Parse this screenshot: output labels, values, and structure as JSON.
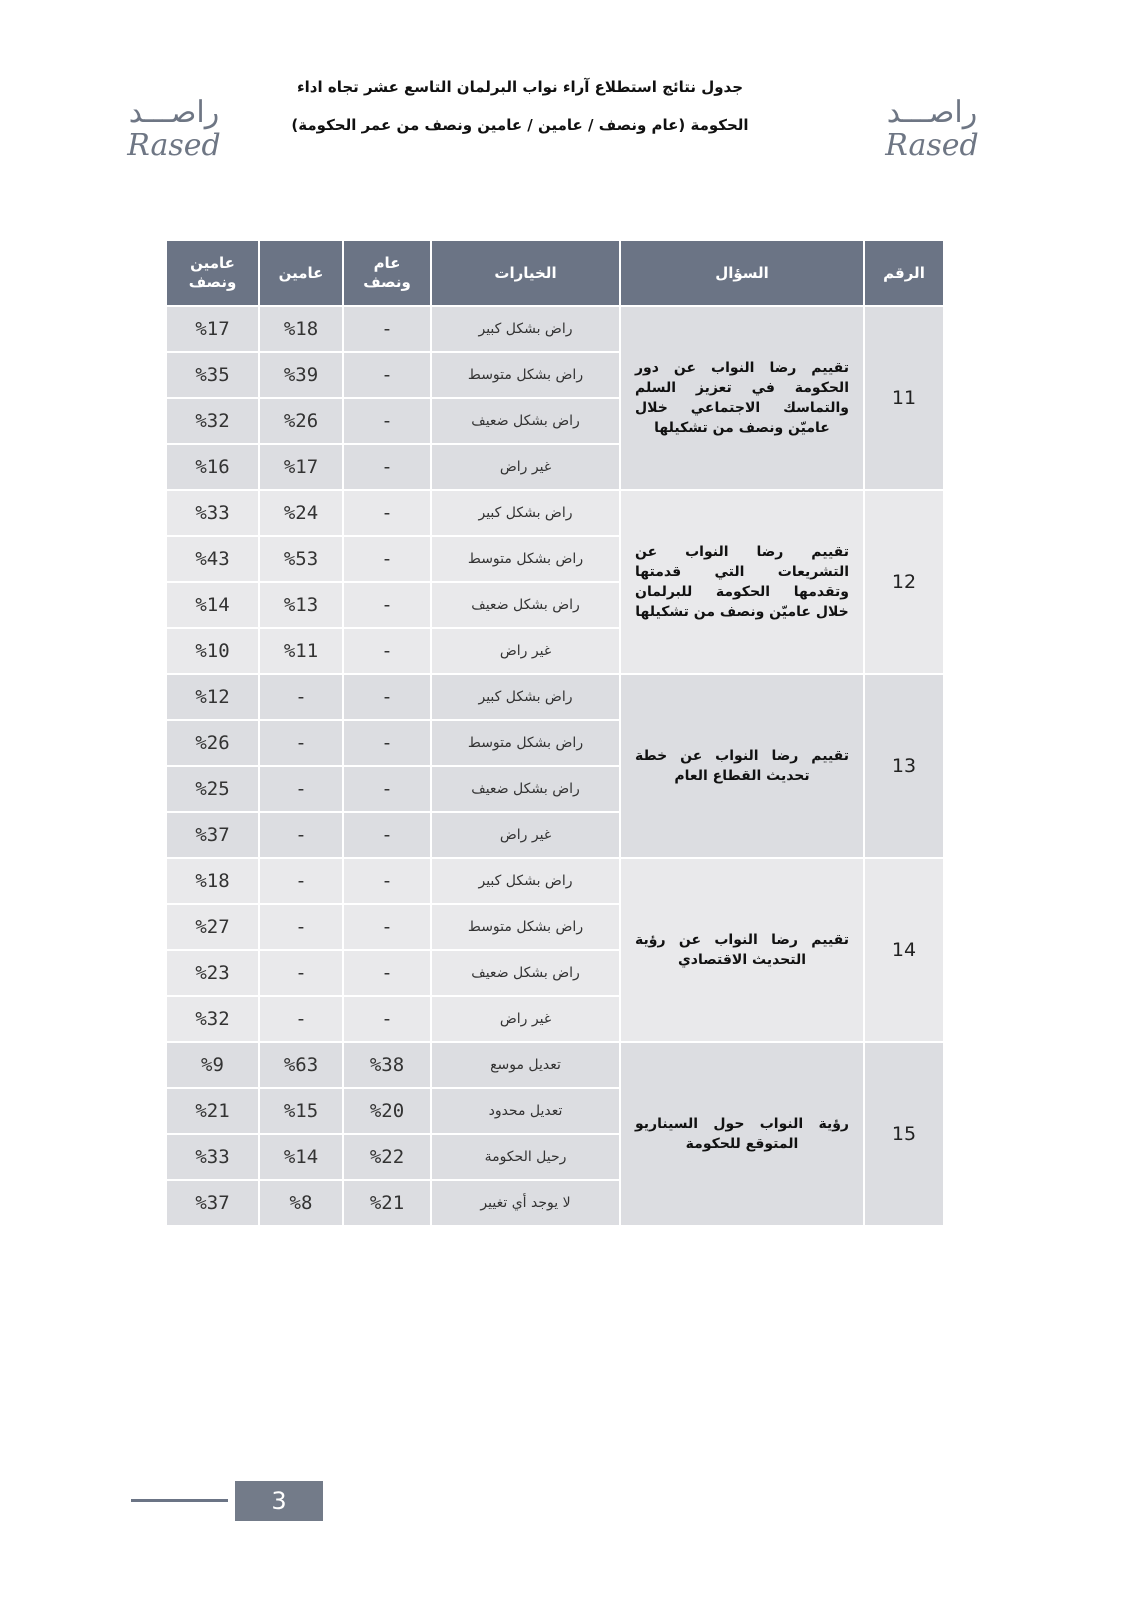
{
  "logo": {
    "arabic": "راصـــد",
    "latin": "Rased"
  },
  "title": {
    "line1": "جدول نتائج استطلاع آراء نواب البرلمان التاسع عشر تجاه اداء",
    "line2": "الحكومة (عام ونصف / عامين / عامين ونصف من عمر الحكومة)"
  },
  "table": {
    "headers": {
      "number": "الرقم",
      "question": "السؤال",
      "options": "الخيارات",
      "year_half": "عام ونصف",
      "two_years": "عامين",
      "two_half": "عامين ونصف"
    },
    "groups": [
      {
        "number": "11",
        "question": "تقييم رضا النواب عن دور الحكومة في تعزيز السلم والتماسك الاجتماعي خلال عاميّن ونصف من تشكيلها",
        "rows": [
          {
            "option": "راض بشكل كبير",
            "year_half": "-",
            "two_years": "%18",
            "two_half": "%17"
          },
          {
            "option": "راض بشكل متوسط",
            "year_half": "-",
            "two_years": "%39",
            "two_half": "%35"
          },
          {
            "option": "راض بشكل ضعيف",
            "year_half": "-",
            "two_years": "%26",
            "two_half": "%32"
          },
          {
            "option": "غير راض",
            "year_half": "-",
            "two_years": "%17",
            "two_half": "%16"
          }
        ]
      },
      {
        "number": "12",
        "question": "تقييم رضا النواب عن التشريعات التي قدمتها وتقدمها الحكومة للبرلمان خلال عاميّن ونصف من تشكيلها",
        "rows": [
          {
            "option": "راض بشكل كبير",
            "year_half": "-",
            "two_years": "%24",
            "two_half": "%33"
          },
          {
            "option": "راض بشكل متوسط",
            "year_half": "-",
            "two_years": "%53",
            "two_half": "%43"
          },
          {
            "option": "راض بشكل ضعيف",
            "year_half": "-",
            "two_years": "%13",
            "two_half": "%14"
          },
          {
            "option": "غير راض",
            "year_half": "-",
            "two_years": "%11",
            "two_half": "%10"
          }
        ]
      },
      {
        "number": "13",
        "question": "تقييم رضا النواب عن خطة تحديث القطاع العام",
        "rows": [
          {
            "option": "راض بشكل كبير",
            "year_half": "-",
            "two_years": "-",
            "two_half": "%12"
          },
          {
            "option": "راض بشكل متوسط",
            "year_half": "-",
            "two_years": "-",
            "two_half": "%26"
          },
          {
            "option": "راض بشكل ضعيف",
            "year_half": "-",
            "two_years": "-",
            "two_half": "%25"
          },
          {
            "option": "غير راض",
            "year_half": "-",
            "two_years": "-",
            "two_half": "%37"
          }
        ]
      },
      {
        "number": "14",
        "question": "تقييم رضا النواب عن رؤية التحديث الاقتصادي",
        "rows": [
          {
            "option": "راض بشكل كبير",
            "year_half": "-",
            "two_years": "-",
            "two_half": "%18"
          },
          {
            "option": "راض بشكل متوسط",
            "year_half": "-",
            "two_years": "-",
            "two_half": "%27"
          },
          {
            "option": "راض بشكل ضعيف",
            "year_half": "-",
            "two_years": "-",
            "two_half": "%23"
          },
          {
            "option": "غير راض",
            "year_half": "-",
            "two_years": "-",
            "two_half": "%32"
          }
        ]
      },
      {
        "number": "15",
        "question": "رؤية النواب حول السيناريو المتوقع للحكومة",
        "rows": [
          {
            "option": "تعديل موسع",
            "year_half": "%38",
            "two_years": "%63",
            "two_half": "%9"
          },
          {
            "option": "تعديل محدود",
            "year_half": "%20",
            "two_years": "%15",
            "two_half": "%21"
          },
          {
            "option": "رحيل الحكومة",
            "year_half": "%22",
            "two_years": "%14",
            "two_half": "%33"
          },
          {
            "option": "لا يوجد أي تغيير",
            "year_half": "%21",
            "two_years": "%8",
            "two_half": "%37"
          }
        ]
      }
    ]
  },
  "footer": {
    "page_number": "3"
  },
  "colors": {
    "header_bg": "#6b7485",
    "row_dark": "#dcdde1",
    "row_light": "#e9e9eb"
  }
}
